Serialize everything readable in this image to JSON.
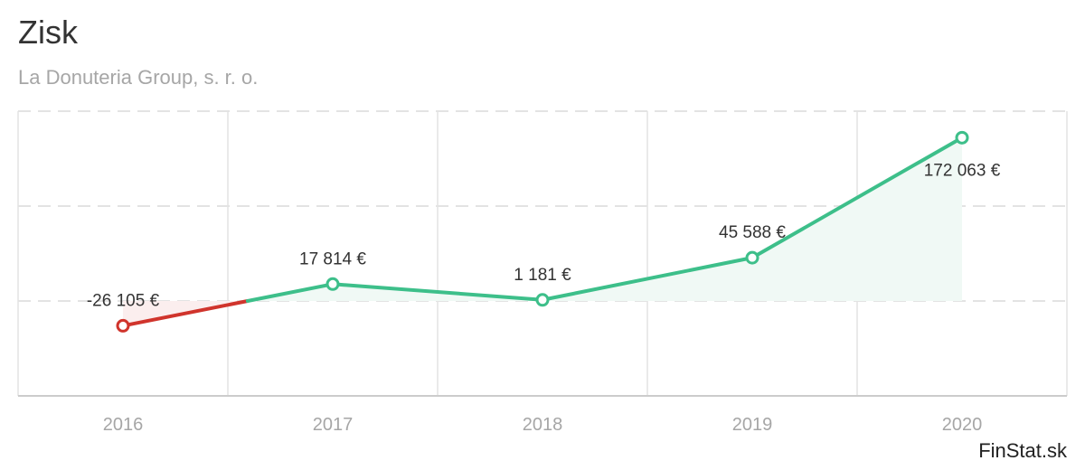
{
  "header": {
    "title": "Zisk",
    "subtitle": "La Donuteria Group, s. r. o."
  },
  "credit": "FinStat.sk",
  "colors": {
    "positive": "#3dbf8a",
    "negative": "#d0342c",
    "positive_fill": "#f0f9f5",
    "negative_fill": "#fbeeee",
    "grid": "#e3e3e3",
    "axis": "#cccccc"
  },
  "chart_data": {
    "type": "line",
    "title": "Zisk",
    "subtitle": "La Donuteria Group, s. r. o.",
    "categories": [
      "2016",
      "2017",
      "2018",
      "2019",
      "2020"
    ],
    "series": [
      {
        "values": [
          -26105,
          17814,
          1181,
          45588,
          172063
        ],
        "labels": [
          "-26 105 €",
          "17 814 €",
          "1 181 €",
          "45 588 €",
          "172 063 €"
        ]
      }
    ],
    "ylim": [
      -100000,
      200000
    ],
    "grid": true,
    "legend": "none"
  }
}
